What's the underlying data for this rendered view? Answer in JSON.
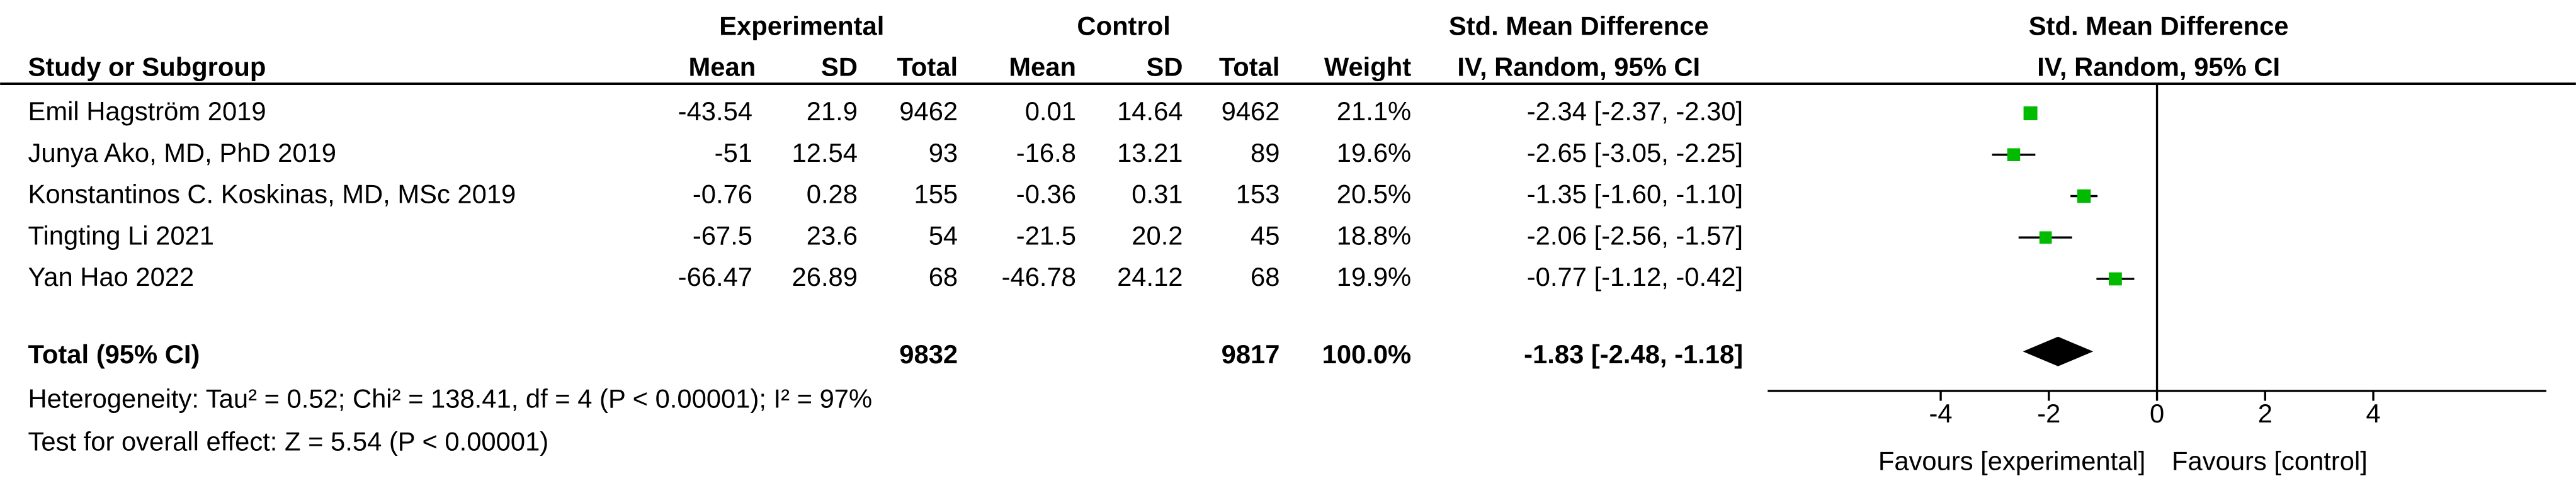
{
  "chart_data": {
    "type": "forest",
    "group_headers": {
      "experimental": "Experimental",
      "control": "Control",
      "effect": "Std. Mean Difference",
      "plot": "Std. Mean Difference"
    },
    "column_headers": [
      "Study or Subgroup",
      "Mean",
      "SD",
      "Total",
      "Mean",
      "SD",
      "Total",
      "Weight",
      "IV, Random, 95% CI"
    ],
    "plot_subheader": "IV, Random, 95% CI",
    "studies": [
      "Emil Hagström 2019",
      "Junya Ako, MD, PhD 2019",
      "Konstantinos C. Koskinas, MD, MSc 2019",
      "Tingting Li 2021",
      "Yan Hao 2022"
    ],
    "experimental": {
      "mean": [
        -43.54,
        -51,
        -0.76,
        -67.5,
        -66.47
      ],
      "sd": [
        21.9,
        12.54,
        0.28,
        23.6,
        26.89
      ],
      "total": [
        9462,
        93,
        155,
        54,
        68
      ]
    },
    "control": {
      "mean": [
        0.01,
        -16.8,
        -0.36,
        -21.5,
        -46.78
      ],
      "sd": [
        14.64,
        13.21,
        0.31,
        20.2,
        24.12
      ],
      "total": [
        9462,
        89,
        153,
        45,
        68
      ]
    },
    "weights": [
      21.1,
      19.6,
      20.5,
      18.8,
      19.9
    ],
    "weight_labels": [
      "21.1%",
      "19.6%",
      "20.5%",
      "18.8%",
      "19.9%"
    ],
    "values": [
      -2.34,
      -2.65,
      -1.35,
      -2.06,
      -0.77
    ],
    "lower": [
      -2.37,
      -3.05,
      -1.6,
      -2.56,
      -1.12
    ],
    "upper": [
      -2.3,
      -2.25,
      -1.1,
      -1.57,
      -0.42
    ],
    "value_labels": [
      "-2.34 [-2.37, -2.30]",
      "-2.65 [-3.05, -2.25]",
      "-1.35 [-1.60, -1.10]",
      "-2.06 [-2.56, -1.57]",
      "-0.77 [-1.12, -0.42]"
    ],
    "total": {
      "label": "Total (95% CI)",
      "experimental_total": 9832,
      "control_total": 9817,
      "weight_label": "100.0%",
      "value": -1.83,
      "lower": -2.48,
      "upper": -1.18,
      "value_label": "-1.83 [-2.48, -1.18]"
    },
    "heterogeneity": "Heterogeneity: Tau² = 0.52; Chi² = 138.41, df = 4 (P < 0.00001); I² = 97%",
    "overall_effect": "Test for overall effect: Z = 5.54 (P < 0.00001)",
    "xlim": [
      -7.2,
      7.2
    ],
    "xticks": [
      -4,
      -2,
      0,
      2,
      4
    ],
    "xlabel_left": "Favours [experimental]",
    "xlabel_right": "Favours [control]",
    "color": "#00bb00",
    "diamond_color": "#000000"
  }
}
